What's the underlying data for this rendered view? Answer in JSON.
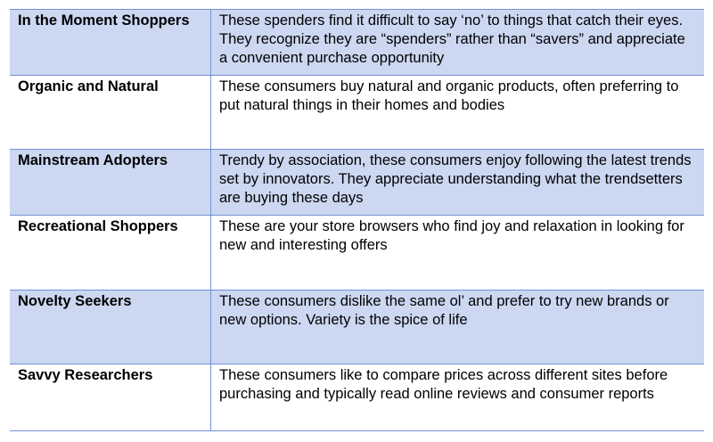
{
  "table": {
    "rows": [
      {
        "segment": "In the Moment Shoppers",
        "description": "These spenders find it difficult to say ‘no’ to things that catch their eyes. They recognize they are “spenders” rather than “savers” and appreciate a convenient purchase opportunity",
        "shaded": true
      },
      {
        "segment": "Organic and Natural",
        "description": "These consumers buy natural and organic products, often preferring to put natural things in their homes and bodies",
        "shaded": false
      },
      {
        "segment": "Mainstream Adopters",
        "description": "Trendy by association, these consumers enjoy following the latest trends set by innovators. They appreciate understanding what the trendsetters are buying these days",
        "shaded": true
      },
      {
        "segment": "Recreational Shoppers",
        "description": "These are your store browsers who find joy and relaxation in looking for new and interesting offers",
        "shaded": false
      },
      {
        "segment": "Novelty Seekers",
        "description": "These consumers dislike the same ol’ and prefer to try new brands or new options. Variety is the spice of life",
        "shaded": true
      },
      {
        "segment": "Savvy Researchers",
        "description": "These consumers like to compare prices across different sites before purchasing and typically read online reviews and consumer reports",
        "shaded": false
      }
    ],
    "colors": {
      "shade": "#ccd7f1",
      "border": "#7391d6"
    }
  }
}
